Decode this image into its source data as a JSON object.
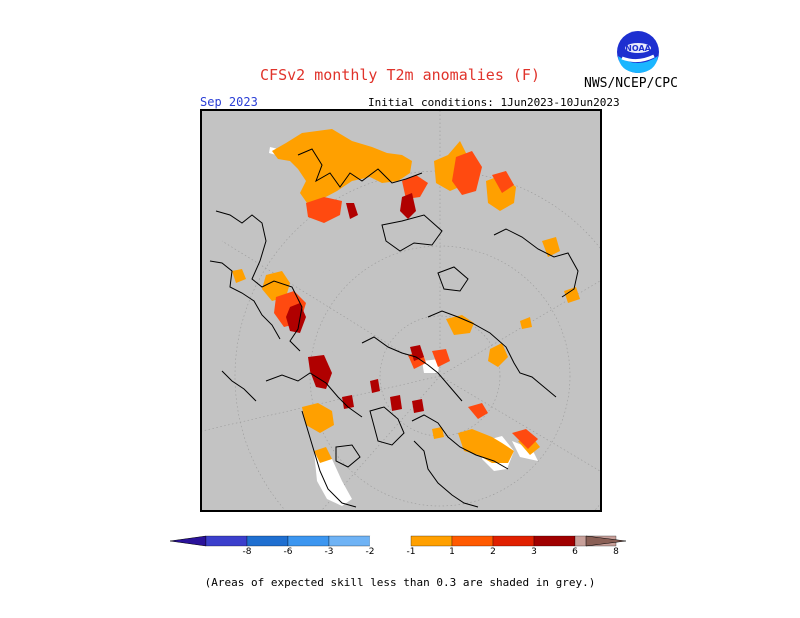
{
  "header": {
    "title": "CFSv2 monthly T2m anomalies (F)",
    "agency": "NWS/NCEP/CPC",
    "month": "Sep 2023",
    "initial_conditions": "Initial conditions:  1Jun2023-10Jun2023",
    "logo_icon": "noaa-logo-icon"
  },
  "map": {
    "projection": "north-polar-stereographic",
    "background_color": "#c3c3c3",
    "note": ""
  },
  "legend": {
    "labels": [
      "-8",
      "-6",
      "-3",
      "-2",
      "-1",
      "1",
      "2",
      "3",
      "6",
      "8"
    ],
    "colors": [
      "#2a129a",
      "#3b3fcc",
      "#1f6fd0",
      "#3c96f0",
      "#6fb3f5",
      "#ffffff",
      "#ffa000",
      "#ff5a00",
      "#e02000",
      "#a00000",
      "#c8a09a",
      "#8a5f55"
    ],
    "footnote": "(Areas of expected skill less than 0.3 are shaded in grey.)"
  }
}
